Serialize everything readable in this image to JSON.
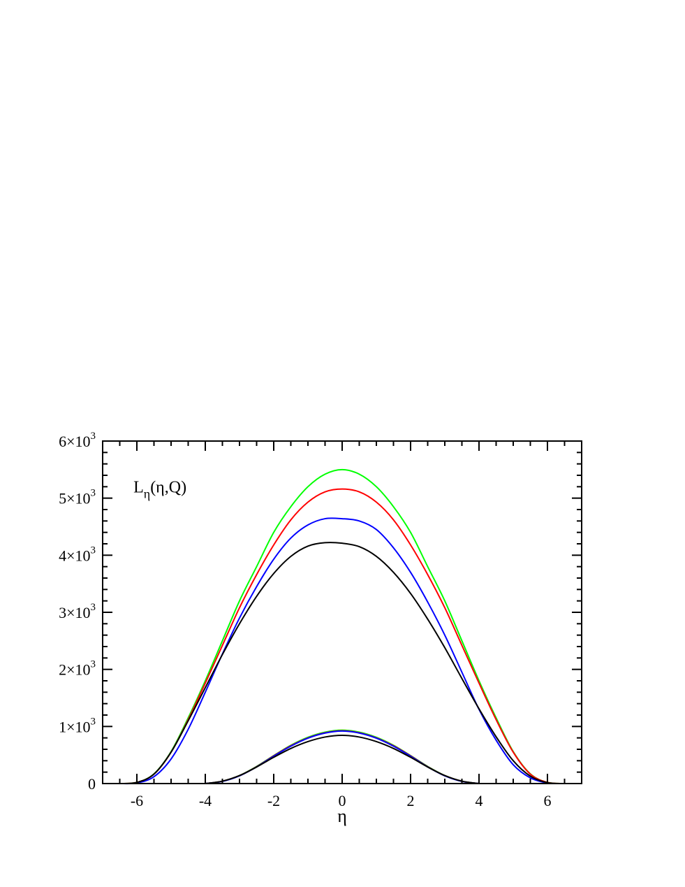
{
  "chart_data": {
    "type": "line",
    "title": "",
    "xlabel": "η",
    "ylabel": "",
    "xlim": [
      -7,
      7
    ],
    "ylim": [
      0,
      6000
    ],
    "grid": false,
    "x_ticks": [
      -6,
      -4,
      -2,
      0,
      2,
      4,
      6
    ],
    "x_tick_labels": [
      "-6",
      "-4",
      "-2",
      "0",
      "2",
      "4",
      "6"
    ],
    "y_ticks": [
      0,
      1000,
      2000,
      3000,
      4000,
      5000,
      6000
    ],
    "y_tick_labels": [
      {
        "mantissa": "0",
        "exponent": ""
      },
      {
        "mantissa": "1×10",
        "exponent": "3"
      },
      {
        "mantissa": "2×10",
        "exponent": "3"
      },
      {
        "mantissa": "3×10",
        "exponent": "3"
      },
      {
        "mantissa": "4×10",
        "exponent": "3"
      },
      {
        "mantissa": "5×10",
        "exponent": "3"
      },
      {
        "mantissa": "6×10",
        "exponent": "3"
      }
    ],
    "annotation": {
      "main": "L",
      "sub": "η",
      "rest": "(η,Q)",
      "pos": [
        -6.1,
        5100
      ]
    },
    "series": [
      {
        "color": "#00ff00",
        "x": [
          -6.5,
          -6,
          -5.5,
          -5,
          -4.5,
          -4,
          -3.5,
          -3,
          -2.5,
          -2,
          -1.5,
          -1,
          -0.5,
          0,
          0.5,
          1,
          1.5,
          2,
          2.5,
          3,
          3.5,
          4,
          4.5,
          5,
          5.5,
          6,
          6.5
        ],
        "y": [
          0,
          20,
          170,
          560,
          1150,
          1800,
          2500,
          3200,
          3800,
          4400,
          4850,
          5200,
          5420,
          5500,
          5420,
          5200,
          4850,
          4400,
          3800,
          3200,
          2500,
          1800,
          1150,
          560,
          170,
          20,
          0
        ]
      },
      {
        "color": "#ff0000",
        "x": [
          -6.5,
          -6,
          -5.5,
          -5,
          -4.5,
          -4,
          -3.5,
          -3,
          -2.5,
          -2,
          -1.5,
          -1,
          -0.5,
          0,
          0.5,
          1,
          1.5,
          2,
          2.5,
          3,
          3.5,
          4,
          4.5,
          5,
          5.5,
          6,
          6.5
        ],
        "y": [
          0,
          20,
          165,
          550,
          1120,
          1760,
          2420,
          3080,
          3660,
          4180,
          4620,
          4930,
          5110,
          5160,
          5110,
          4930,
          4620,
          4180,
          3660,
          3080,
          2420,
          1760,
          1120,
          550,
          165,
          20,
          0
        ]
      },
      {
        "color": "#0000ff",
        "x": [
          -6.5,
          -6,
          -5.5,
          -5,
          -4.5,
          -4,
          -3.5,
          -3,
          -2.5,
          -2,
          -1.5,
          -1,
          -0.5,
          0,
          0.5,
          1,
          1.5,
          2,
          2.5,
          3,
          3.5,
          4,
          4.5,
          5,
          5.5,
          6,
          6.5
        ],
        "y": [
          0,
          10,
          120,
          430,
          950,
          1600,
          2270,
          2900,
          3450,
          3930,
          4300,
          4530,
          4640,
          4640,
          4600,
          4450,
          4130,
          3700,
          3180,
          2600,
          1950,
          1300,
          760,
          330,
          100,
          10,
          0
        ]
      },
      {
        "color": "#000000",
        "x": [
          -6.5,
          -6,
          -5.5,
          -5,
          -4.5,
          -4,
          -3.5,
          -3,
          -2.5,
          -2,
          -1.5,
          -1,
          -0.5,
          0,
          0.5,
          1,
          1.5,
          2,
          2.5,
          3,
          3.5,
          4,
          4.5,
          5,
          5.5,
          6,
          6.5
        ],
        "y": [
          0,
          20,
          165,
          550,
          1100,
          1680,
          2260,
          2800,
          3280,
          3680,
          3980,
          4160,
          4220,
          4210,
          4150,
          3980,
          3700,
          3330,
          2880,
          2380,
          1840,
          1310,
          820,
          400,
          130,
          15,
          0
        ]
      },
      {
        "color": "#00ff00",
        "x": [
          -4,
          -3.5,
          -3,
          -2.5,
          -2,
          -1.5,
          -1,
          -0.5,
          0,
          0.5,
          1,
          1.5,
          2,
          2.5,
          3,
          3.5,
          4
        ],
        "y": [
          0,
          40,
          140,
          300,
          490,
          670,
          810,
          900,
          935,
          900,
          810,
          670,
          490,
          300,
          140,
          40,
          0
        ]
      },
      {
        "color": "#ff0000",
        "x": [
          -4,
          -3.5,
          -3,
          -2.5,
          -2,
          -1.5,
          -1,
          -0.5,
          0,
          0.5,
          1,
          1.5,
          2,
          2.5,
          3,
          3.5,
          4
        ],
        "y": [
          0,
          40,
          138,
          296,
          485,
          662,
          800,
          890,
          925,
          890,
          800,
          662,
          485,
          296,
          138,
          40,
          0
        ]
      },
      {
        "color": "#0000ff",
        "x": [
          -4,
          -3.5,
          -3,
          -2.5,
          -2,
          -1.5,
          -1,
          -0.5,
          0,
          0.5,
          1,
          1.5,
          2,
          2.5,
          3,
          3.5,
          4
        ],
        "y": [
          0,
          38,
          135,
          292,
          480,
          655,
          795,
          885,
          920,
          885,
          795,
          655,
          480,
          292,
          135,
          38,
          0
        ]
      },
      {
        "color": "#000000",
        "x": [
          -4,
          -3.5,
          -3,
          -2.5,
          -2,
          -1.5,
          -1,
          -0.5,
          0,
          0.5,
          1,
          1.5,
          2,
          2.5,
          3,
          3.5,
          4
        ],
        "y": [
          0,
          42,
          140,
          290,
          460,
          615,
          735,
          815,
          845,
          815,
          735,
          615,
          460,
          290,
          140,
          42,
          0
        ]
      }
    ]
  }
}
